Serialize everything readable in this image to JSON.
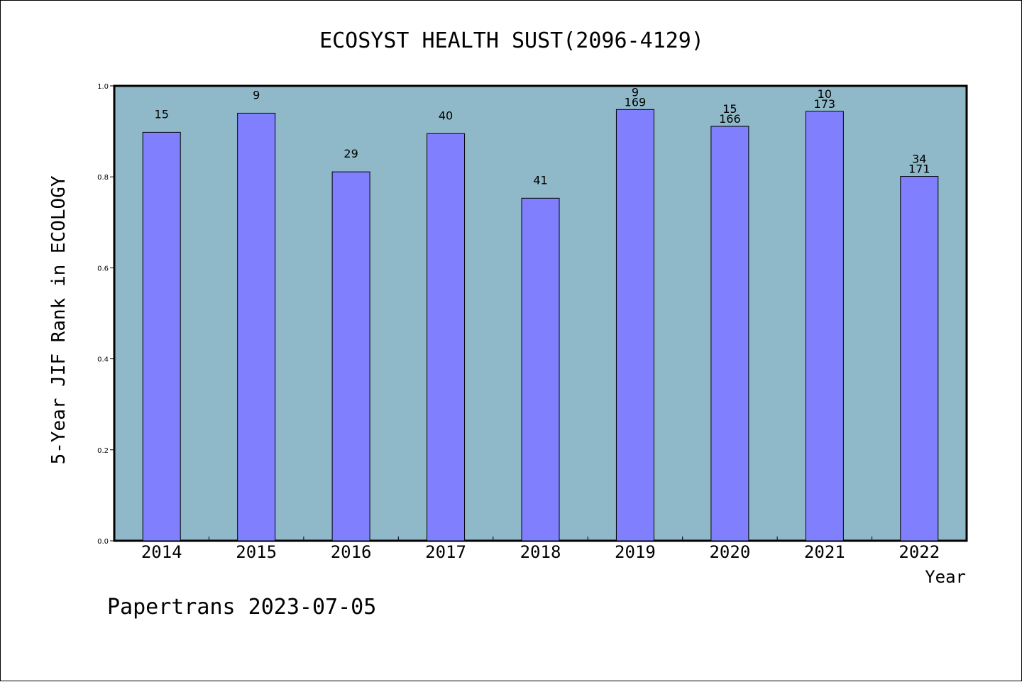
{
  "chart_data": {
    "type": "bar",
    "title": "ECOSYST HEALTH SUST(2096-4129)",
    "xlabel": "Year",
    "ylabel": "5-Year JIF Rank in ECOLOGY",
    "ylim": [
      0,
      1.0
    ],
    "yticks": [
      "0.0",
      "0.2",
      "0.4",
      "0.6",
      "0.8",
      "1.0"
    ],
    "categories": [
      "2014",
      "2015",
      "2016",
      "2017",
      "2018",
      "2019",
      "2020",
      "2021",
      "2022"
    ],
    "values": [
      0.898,
      0.94,
      0.811,
      0.895,
      0.753,
      0.948,
      0.911,
      0.944,
      0.801
    ],
    "rank_labels": [
      "15",
      "9",
      "29",
      "40",
      "41",
      "9",
      "15",
      "10",
      "34"
    ],
    "total_labels": [
      "",
      "",
      "",
      "",
      "",
      "169",
      "166",
      "173",
      "171"
    ],
    "grid": false,
    "colors": {
      "plot_background": "#8fb8c8",
      "bar_fill": "#8080ff",
      "bar_stroke": "#000000"
    }
  },
  "footer": "Papertrans 2023-07-05"
}
